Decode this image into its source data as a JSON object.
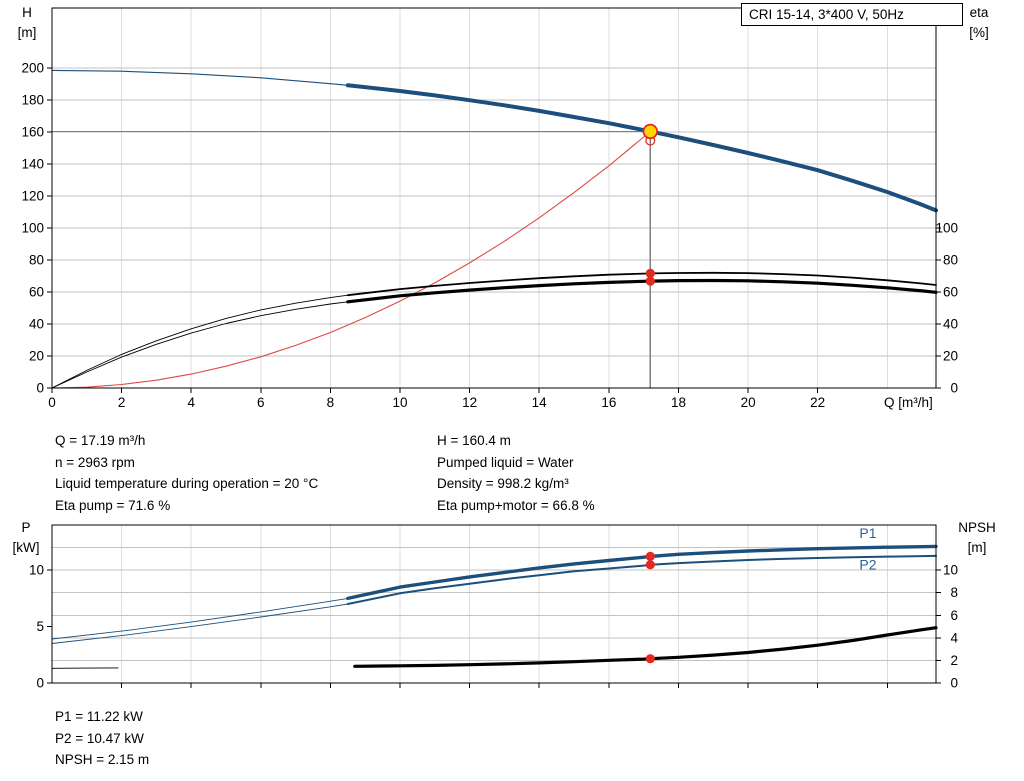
{
  "colors": {
    "blue": "#1c4f7c",
    "label_blue": "#2e6095",
    "red": "#e02b20",
    "duty_fill": "#ffd400",
    "grid_h": "#c3c3c3",
    "grid_v": "#dddddd",
    "crosshair": "#7f7f7f",
    "axis": "#000000"
  },
  "axis_headers": {
    "qh_left": [
      "H",
      "[m]"
    ],
    "qh_right": [
      "eta",
      "[%]"
    ],
    "pn_left": [
      "P",
      "[kW]"
    ],
    "pn_right": [
      "NPSH",
      "[m]"
    ]
  },
  "info_blocks": {
    "left": [
      "Q = 17.19 m³/h",
      "n = 2963 rpm",
      "Liquid temperature during operation = 20 °C",
      "Eta pump = 71.6 %"
    ],
    "right": [
      "H = 160.4 m",
      "Pumped liquid = Water",
      "Density = 998.2 kg/m³",
      "Eta pump+motor = 66.8 %"
    ],
    "bottom": [
      "P1 = 11.22 kW",
      "P2 = 10.47 kW",
      "NPSH = 2.15 m"
    ]
  },
  "chart_data": {
    "type": "line",
    "charts": [
      {
        "name": "qh-chart",
        "title": "CRI 15-14, 3*400 V, 50Hz",
        "x": {
          "label": "Q [m³/h]",
          "min": 0,
          "max": 25.4,
          "ticks": [
            0,
            2,
            4,
            6,
            8,
            10,
            12,
            14,
            16,
            18,
            20,
            22
          ],
          "grid": [
            2,
            4,
            6,
            8,
            10,
            12,
            14,
            16,
            18,
            20,
            22,
            24
          ],
          "show_tick_labels": true
        },
        "y_left": {
          "label": "H [m]",
          "min": 0,
          "max": 237.5,
          "ticks": [
            0,
            20,
            40,
            60,
            80,
            100,
            120,
            140,
            160,
            180,
            200
          ],
          "grid": [
            20,
            40,
            60,
            80,
            100,
            120,
            140,
            160,
            180,
            200
          ]
        },
        "y_right": {
          "label": "eta [%]",
          "ticks": [
            0,
            20,
            40,
            60,
            80,
            100
          ]
        },
        "crosshair": {
          "q": 17.19,
          "value": 160.4
        },
        "curves": [
          {
            "name": "system-curve",
            "color": "#dd4a41",
            "w_thin": 1.1,
            "w_thick": 0,
            "thin": [
              [
                0,
                0
              ],
              [
                1,
                0.5
              ],
              [
                2,
                2.2
              ],
              [
                3,
                4.9
              ],
              [
                4,
                8.7
              ],
              [
                5,
                13.6
              ],
              [
                6,
                19.5
              ],
              [
                7,
                26.6
              ],
              [
                8,
                34.7
              ],
              [
                9,
                44
              ],
              [
                10,
                54.3
              ],
              [
                11,
                65.7
              ],
              [
                12,
                78.2
              ],
              [
                13,
                91.7
              ],
              [
                14,
                106.4
              ],
              [
                15,
                122.1
              ],
              [
                16,
                138.9
              ],
              [
                17,
                156.9
              ],
              [
                17.19,
                160.4
              ]
            ],
            "thick": []
          },
          {
            "name": "eta-pump-motor-curve",
            "color": "#000000",
            "w_thin": 0.9,
            "w_thick": 3.2,
            "thin": [
              [
                0,
                0
              ],
              [
                1,
                10
              ],
              [
                2,
                19.3
              ],
              [
                3,
                27.3
              ],
              [
                4,
                34.3
              ],
              [
                5,
                40.3
              ],
              [
                6,
                45.2
              ],
              [
                7,
                49.2
              ],
              [
                8,
                52.5
              ],
              [
                8.5,
                53.9
              ]
            ],
            "thick": [
              [
                8.5,
                53.9
              ],
              [
                10,
                57.6
              ],
              [
                11,
                59.5
              ],
              [
                12,
                61.2
              ],
              [
                13,
                62.7
              ],
              [
                14,
                64
              ],
              [
                15,
                65.1
              ],
              [
                16,
                66
              ],
              [
                17,
                66.7
              ],
              [
                17.19,
                66.8
              ],
              [
                18,
                67.1
              ],
              [
                19,
                67.2
              ],
              [
                20,
                67
              ],
              [
                21,
                66.4
              ],
              [
                22,
                65.5
              ],
              [
                23,
                64.2
              ],
              [
                24,
                62.6
              ],
              [
                25,
                60.7
              ],
              [
                25.4,
                59.8
              ]
            ]
          },
          {
            "name": "eta-pump-curve",
            "color": "#000000",
            "w_thin": 0.9,
            "w_thick": 1.8,
            "thin": [
              [
                0,
                0
              ],
              [
                1,
                11
              ],
              [
                2,
                21
              ],
              [
                3,
                29.5
              ],
              [
                4,
                37
              ],
              [
                5,
                43.5
              ],
              [
                6,
                48.8
              ],
              [
                7,
                53
              ],
              [
                8,
                56.5
              ],
              [
                8.5,
                58
              ]
            ],
            "thick": [
              [
                8.5,
                58
              ],
              [
                10,
                61.8
              ],
              [
                11,
                63.8
              ],
              [
                12,
                65.6
              ],
              [
                13,
                67.2
              ],
              [
                14,
                68.6
              ],
              [
                15,
                69.8
              ],
              [
                16,
                70.8
              ],
              [
                17,
                71.5
              ],
              [
                17.19,
                71.6
              ],
              [
                18,
                71.9
              ],
              [
                19,
                72
              ],
              [
                20,
                71.8
              ],
              [
                21,
                71.2
              ],
              [
                22,
                70.3
              ],
              [
                23,
                69
              ],
              [
                24,
                67.3
              ],
              [
                25,
                65.3
              ],
              [
                25.4,
                64.4
              ]
            ]
          },
          {
            "name": "head-curve",
            "color": "#1c4f7c",
            "w_thin": 1.1,
            "w_thick": 4,
            "thin": [
              [
                0,
                198.5
              ],
              [
                2,
                198
              ],
              [
                4,
                196.4
              ],
              [
                6,
                193.9
              ],
              [
                8,
                190.2
              ],
              [
                8.5,
                189.2
              ]
            ],
            "thick": [
              [
                8.5,
                189.2
              ],
              [
                10,
                185.6
              ],
              [
                11,
                182.9
              ],
              [
                12,
                179.9
              ],
              [
                13,
                176.7
              ],
              [
                14,
                173.2
              ],
              [
                15,
                169.4
              ],
              [
                16,
                165.5
              ],
              [
                17.19,
                160.4
              ],
              [
                18,
                156.7
              ],
              [
                19,
                151.9
              ],
              [
                20,
                146.9
              ],
              [
                21,
                141.6
              ],
              [
                22,
                136.1
              ],
              [
                23,
                129.5
              ],
              [
                24,
                122.5
              ],
              [
                25,
                114.5
              ],
              [
                25.4,
                111
              ]
            ]
          }
        ],
        "markers": [
          {
            "name": "system-point-marker",
            "style": "red-open",
            "q": 17.19,
            "value": 154.6
          },
          {
            "name": "eta-pump-point",
            "style": "red-dot",
            "q": 17.19,
            "value": 71.6
          },
          {
            "name": "eta-pump-motor-point",
            "style": "red-dot",
            "q": 17.19,
            "value": 66.8
          },
          {
            "name": "duty-point",
            "style": "duty",
            "q": 17.19,
            "value": 160.4
          }
        ],
        "labels": []
      },
      {
        "name": "power-npsh-chart",
        "title": "",
        "x": {
          "label": "",
          "min": 0,
          "max": 25.4,
          "ticks": [
            2,
            4,
            6,
            8,
            10,
            12,
            14,
            16,
            18,
            20,
            22,
            24
          ],
          "grid": [
            2,
            4,
            6,
            8,
            10,
            12,
            14,
            16,
            18,
            20,
            22,
            24
          ],
          "show_tick_labels": false
        },
        "y_left": {
          "label": "P [kW]",
          "min": 0,
          "max": 14,
          "ticks": [
            0,
            5,
            10
          ],
          "grid": [
            2,
            4,
            6,
            8,
            10,
            12
          ]
        },
        "y_right": {
          "label": "NPSH [m]",
          "ticks": [
            0,
            2,
            4,
            6,
            8,
            10
          ]
        },
        "crosshair": null,
        "curves": [
          {
            "name": "npsh-curve",
            "color": "#000000",
            "w_thin": 0.9,
            "w_thick": 3.2,
            "thin": [
              [
                0,
                1.3
              ],
              [
                1,
                1.32
              ],
              [
                1.9,
                1.34
              ]
            ],
            "thick": [
              [
                8.7,
                1.48
              ],
              [
                10,
                1.52
              ],
              [
                11,
                1.56
              ],
              [
                12,
                1.62
              ],
              [
                13,
                1.69
              ],
              [
                14,
                1.78
              ],
              [
                15,
                1.89
              ],
              [
                16,
                2.01
              ],
              [
                17,
                2.12
              ],
              [
                17.19,
                2.15
              ],
              [
                18,
                2.28
              ],
              [
                19,
                2.47
              ],
              [
                20,
                2.7
              ],
              [
                21,
                3
              ],
              [
                22,
                3.35
              ],
              [
                23,
                3.77
              ],
              [
                24,
                4.25
              ],
              [
                25,
                4.72
              ],
              [
                25.4,
                4.9
              ]
            ]
          },
          {
            "name": "p2-curve",
            "color": "#1c4f7c",
            "w_thin": 0.9,
            "w_thick": 2,
            "thin": [
              [
                0,
                3.5
              ],
              [
                2,
                4.2
              ],
              [
                4,
                5
              ],
              [
                6,
                5.85
              ],
              [
                8,
                6.75
              ],
              [
                8.5,
                7
              ]
            ],
            "thick": [
              [
                8.5,
                7
              ],
              [
                10,
                7.95
              ],
              [
                11,
                8.4
              ],
              [
                12,
                8.8
              ],
              [
                13,
                9.2
              ],
              [
                14,
                9.55
              ],
              [
                15,
                9.9
              ],
              [
                16,
                10.15
              ],
              [
                17,
                10.4
              ],
              [
                17.19,
                10.47
              ],
              [
                18,
                10.62
              ],
              [
                19,
                10.77
              ],
              [
                20,
                10.9
              ],
              [
                21,
                11
              ],
              [
                22,
                11.08
              ],
              [
                23,
                11.15
              ],
              [
                24,
                11.2
              ],
              [
                25,
                11.24
              ],
              [
                25.4,
                11.26
              ]
            ]
          },
          {
            "name": "p1-curve",
            "color": "#1c4f7c",
            "w_thin": 0.9,
            "w_thick": 3.4,
            "thin": [
              [
                0,
                3.9
              ],
              [
                2,
                4.6
              ],
              [
                4,
                5.4
              ],
              [
                6,
                6.3
              ],
              [
                8,
                7.25
              ],
              [
                8.5,
                7.5
              ]
            ],
            "thick": [
              [
                8.5,
                7.5
              ],
              [
                10,
                8.5
              ],
              [
                11,
                8.95
              ],
              [
                12,
                9.4
              ],
              [
                13,
                9.8
              ],
              [
                14,
                10.2
              ],
              [
                15,
                10.55
              ],
              [
                16,
                10.85
              ],
              [
                17,
                11.15
              ],
              [
                17.19,
                11.22
              ],
              [
                18,
                11.4
              ],
              [
                19,
                11.55
              ],
              [
                20,
                11.7
              ],
              [
                21,
                11.8
              ],
              [
                22,
                11.9
              ],
              [
                23,
                11.97
              ],
              [
                24,
                12.03
              ],
              [
                25,
                12.08
              ],
              [
                25.4,
                12.1
              ]
            ]
          }
        ],
        "markers": [
          {
            "name": "p1-point",
            "style": "red-dot",
            "q": 17.19,
            "value": 11.22
          },
          {
            "name": "p2-point",
            "style": "red-dot",
            "q": 17.19,
            "value": 10.47
          },
          {
            "name": "npsh-point",
            "style": "red-dot",
            "q": 17.19,
            "value": 2.15
          }
        ],
        "labels": [
          {
            "name": "p1-curve-label",
            "text": "P1",
            "q": 23.2,
            "value": 12.85,
            "color": "#2e6095"
          },
          {
            "name": "p2-curve-label",
            "text": "P2",
            "q": 23.2,
            "value": 10.05,
            "color": "#2e6095"
          }
        ]
      }
    ]
  }
}
